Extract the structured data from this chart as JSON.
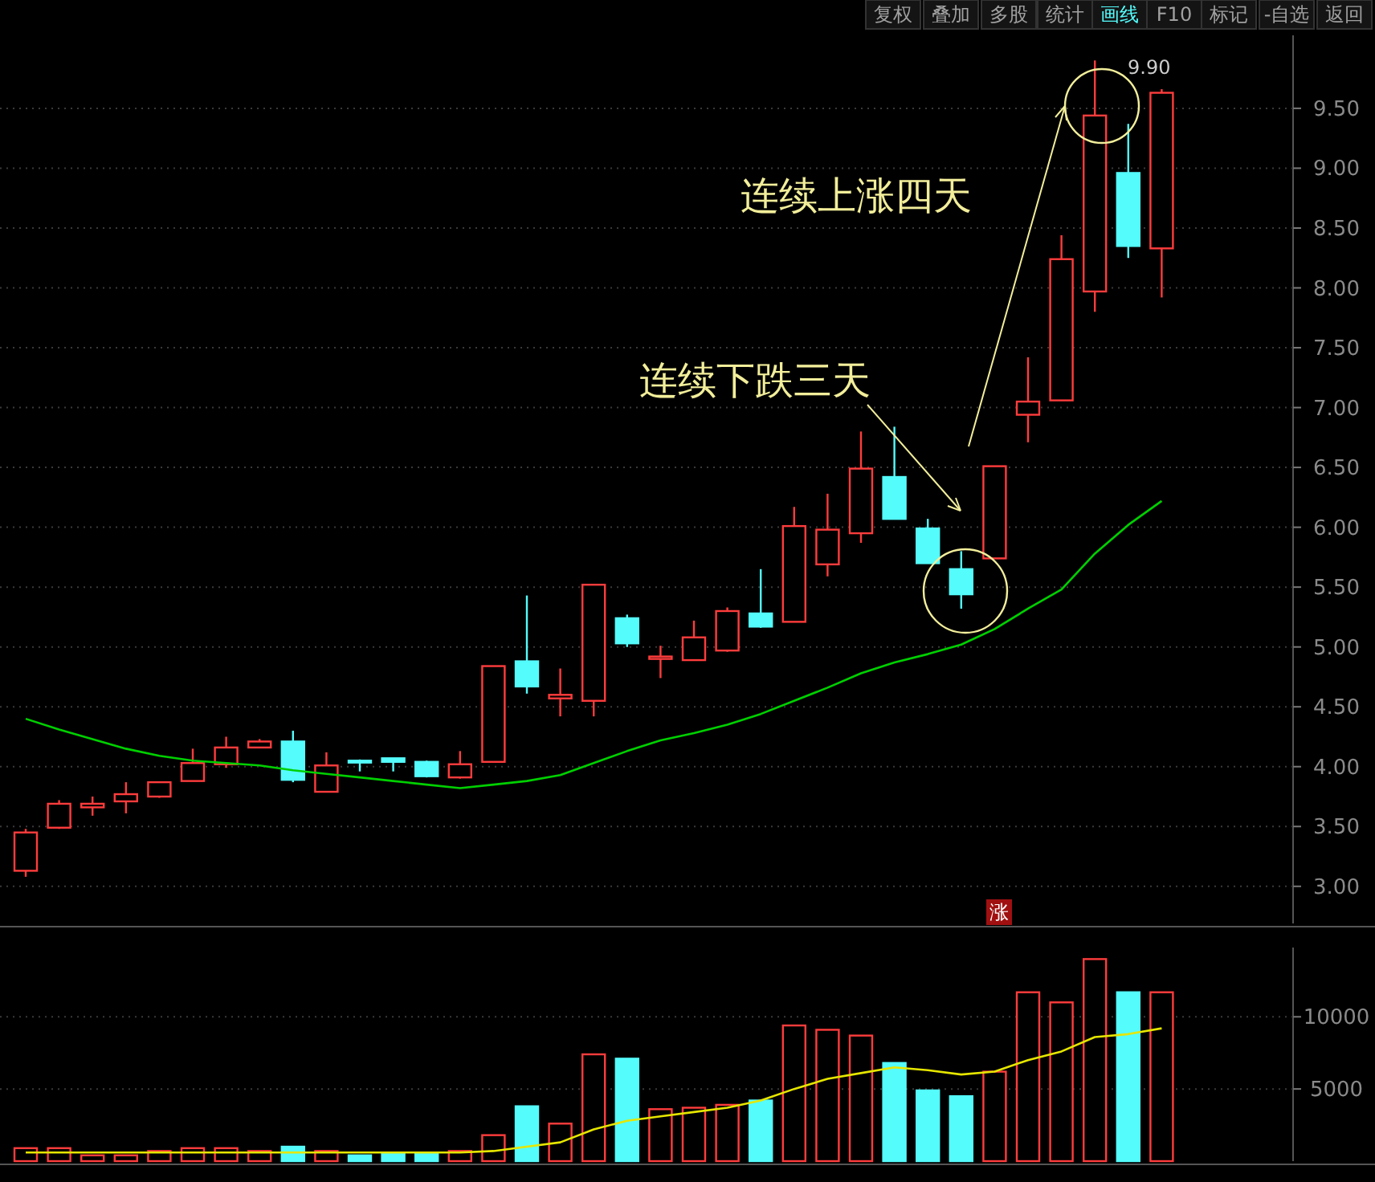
{
  "chart_data": [
    {
      "type": "candlestick",
      "categories": [
        null,
        null,
        null,
        null,
        null,
        null,
        null,
        null,
        null,
        null,
        null,
        null,
        null,
        null,
        null,
        null,
        null,
        null,
        null,
        null,
        null,
        null,
        null,
        null,
        null,
        null,
        null,
        null,
        null,
        null,
        null,
        null,
        null,
        null,
        null
      ],
      "ohlc": [
        [
          3.13,
          3.48,
          3.08,
          3.45
        ],
        [
          3.49,
          3.72,
          3.48,
          3.69
        ],
        [
          3.66,
          3.75,
          3.59,
          3.69
        ],
        [
          3.71,
          3.87,
          3.61,
          3.77
        ],
        [
          3.75,
          3.87,
          3.74,
          3.87
        ],
        [
          3.88,
          4.15,
          3.88,
          4.03
        ],
        [
          4.02,
          4.25,
          3.99,
          4.16
        ],
        [
          4.16,
          4.23,
          4.16,
          4.21
        ],
        [
          4.21,
          4.3,
          3.87,
          3.89
        ],
        [
          3.79,
          4.12,
          3.79,
          4.01
        ],
        [
          4.05,
          4.06,
          3.96,
          4.04
        ],
        [
          4.07,
          4.07,
          3.96,
          4.04
        ],
        [
          4.04,
          4.05,
          3.91,
          3.92
        ],
        [
          3.91,
          4.13,
          3.9,
          4.02
        ],
        [
          4.04,
          4.84,
          4.04,
          4.84
        ],
        [
          4.88,
          5.43,
          4.61,
          4.67
        ],
        [
          4.57,
          4.82,
          4.42,
          4.6
        ],
        [
          4.55,
          5.52,
          4.42,
          5.52
        ],
        [
          5.24,
          5.27,
          5.0,
          5.03
        ],
        [
          4.9,
          5.01,
          4.74,
          4.92
        ],
        [
          4.89,
          5.22,
          4.89,
          5.08
        ],
        [
          4.97,
          5.33,
          4.96,
          5.3
        ],
        [
          5.28,
          5.65,
          5.16,
          5.17
        ],
        [
          5.21,
          6.17,
          5.21,
          6.01
        ],
        [
          5.69,
          6.28,
          5.59,
          5.98
        ],
        [
          5.95,
          6.8,
          5.87,
          6.49
        ],
        [
          6.42,
          6.84,
          6.07,
          6.07
        ],
        [
          5.99,
          6.07,
          5.7,
          5.7
        ],
        [
          5.65,
          5.8,
          5.32,
          5.44
        ],
        [
          5.74,
          6.51,
          5.74,
          6.51
        ],
        [
          6.94,
          7.42,
          6.71,
          7.05
        ],
        [
          7.06,
          8.44,
          7.06,
          8.24
        ],
        [
          7.97,
          9.9,
          7.8,
          9.44
        ],
        [
          8.96,
          9.37,
          8.25,
          8.35
        ],
        [
          8.33,
          9.66,
          7.92,
          9.63
        ]
      ],
      "colors": [
        "#ff3c3c",
        "#ff3c3c",
        "#ff3c3c",
        "#ff3c3c",
        "#ff3c3c",
        "#ff3c3c",
        "#ff3c3c",
        "#ff3c3c",
        "#54fcfc",
        "#ff3c3c",
        "#54fcfc",
        "#54fcfc",
        "#54fcfc",
        "#ff3c3c",
        "#ff3c3c",
        "#54fcfc",
        "#ff3c3c",
        "#ff3c3c",
        "#54fcfc",
        "#ff3c3c",
        "#ff3c3c",
        "#ff3c3c",
        "#54fcfc",
        "#ff3c3c",
        "#ff3c3c",
        "#ff3c3c",
        "#54fcfc",
        "#54fcfc",
        "#54fcfc",
        "#ff3c3c",
        "#ff3c3c",
        "#ff3c3c",
        "#ff3c3c",
        "#54fcfc",
        "#ff3c3c"
      ],
      "series": [
        {
          "type": "line",
          "color": "#00d000",
          "values": [
            4.4,
            4.31,
            4.23,
            4.15,
            4.09,
            4.05,
            4.03,
            4.01,
            3.97,
            3.94,
            3.91,
            3.88,
            3.85,
            3.82,
            3.85,
            3.88,
            3.93,
            4.03,
            4.13,
            4.22,
            4.28,
            4.35,
            4.44,
            4.55,
            4.66,
            4.78,
            4.87,
            4.94,
            5.02,
            5.15,
            5.32,
            5.48,
            5.78,
            6.02,
            6.22
          ]
        }
      ],
      "ylim": [
        2.69,
        10.11
      ],
      "yticks": [
        {
          "value": 3,
          "label": "3.00"
        },
        {
          "value": 3.5,
          "label": "3.50"
        },
        {
          "value": 4,
          "label": "4.00"
        },
        {
          "value": 4.5,
          "label": "4.50"
        },
        {
          "value": 5,
          "label": "5.00"
        },
        {
          "value": 5.5,
          "label": "5.50"
        },
        {
          "value": 6,
          "label": "6.00"
        },
        {
          "value": 6.5,
          "label": "6.50"
        },
        {
          "value": 7,
          "label": "7.00"
        },
        {
          "value": 7.5,
          "label": "7.50"
        },
        {
          "value": 8,
          "label": "8.00"
        },
        {
          "value": 8.5,
          "label": "8.50"
        },
        {
          "value": 9,
          "label": "9.00"
        },
        {
          "value": 9.5,
          "label": "9.50"
        }
      ],
      "grid": "y",
      "tick_labels": "y",
      "annotations": [
        "9.90",
        "连续下跌三天",
        "连续上涨四天",
        "涨",
        "复权",
        "叠加",
        "多股",
        "统计",
        "画线",
        "F10",
        "标记",
        "-自选",
        "返回"
      ]
    },
    {
      "type": "bar",
      "categories": [
        null,
        null,
        null,
        null,
        null,
        null,
        null,
        null,
        null,
        null,
        null,
        null,
        null,
        null,
        null,
        null,
        null,
        null,
        null,
        null,
        null,
        null,
        null,
        null,
        null,
        null,
        null,
        null,
        null,
        null,
        null,
        null,
        null,
        null,
        null
      ],
      "series": [
        {
          "type": "bar",
          "colors": [
            "#ff3c3c",
            "#ff3c3c",
            "#ff3c3c",
            "#ff3c3c",
            "#ff3c3c",
            "#ff3c3c",
            "#ff3c3c",
            "#ff3c3c",
            "#54fcfc",
            "#ff3c3c",
            "#54fcfc",
            "#54fcfc",
            "#54fcfc",
            "#ff3c3c",
            "#ff3c3c",
            "#54fcfc",
            "#ff3c3c",
            "#ff3c3c",
            "#54fcfc",
            "#ff3c3c",
            "#ff3c3c",
            "#ff3c3c",
            "#54fcfc",
            "#ff3c3c",
            "#ff3c3c",
            "#ff3c3c",
            "#54fcfc",
            "#54fcfc",
            "#54fcfc",
            "#ff3c3c",
            "#ff3c3c",
            "#ff3c3c",
            "#ff3c3c",
            "#54fcfc",
            "#ff3c3c"
          ],
          "values": [
            900,
            900,
            400,
            400,
            700,
            900,
            900,
            700,
            1000,
            700,
            400,
            600,
            600,
            700,
            1800,
            3800,
            2600,
            7400,
            7100,
            3600,
            3700,
            3900,
            4200,
            9400,
            9100,
            8700,
            6800,
            4900,
            4500,
            6200,
            11700,
            11000,
            14000,
            11700,
            11700
          ]
        },
        {
          "type": "line",
          "color": "#e6e600",
          "values": [
            600,
            600,
            600,
            600,
            600,
            600,
            600,
            600,
            600,
            600,
            600,
            600,
            600,
            600,
            700,
            1000,
            1300,
            2200,
            2800,
            3100,
            3400,
            3700,
            4200,
            5000,
            5700,
            6100,
            6500,
            6300,
            6000,
            6200,
            7000,
            7600,
            8600,
            8800,
            9200
          ]
        }
      ],
      "ylim": [
        0,
        14800
      ],
      "yticks": [
        5000,
        10000
      ],
      "grid": "y",
      "tick_labels": "y"
    }
  ]
}
